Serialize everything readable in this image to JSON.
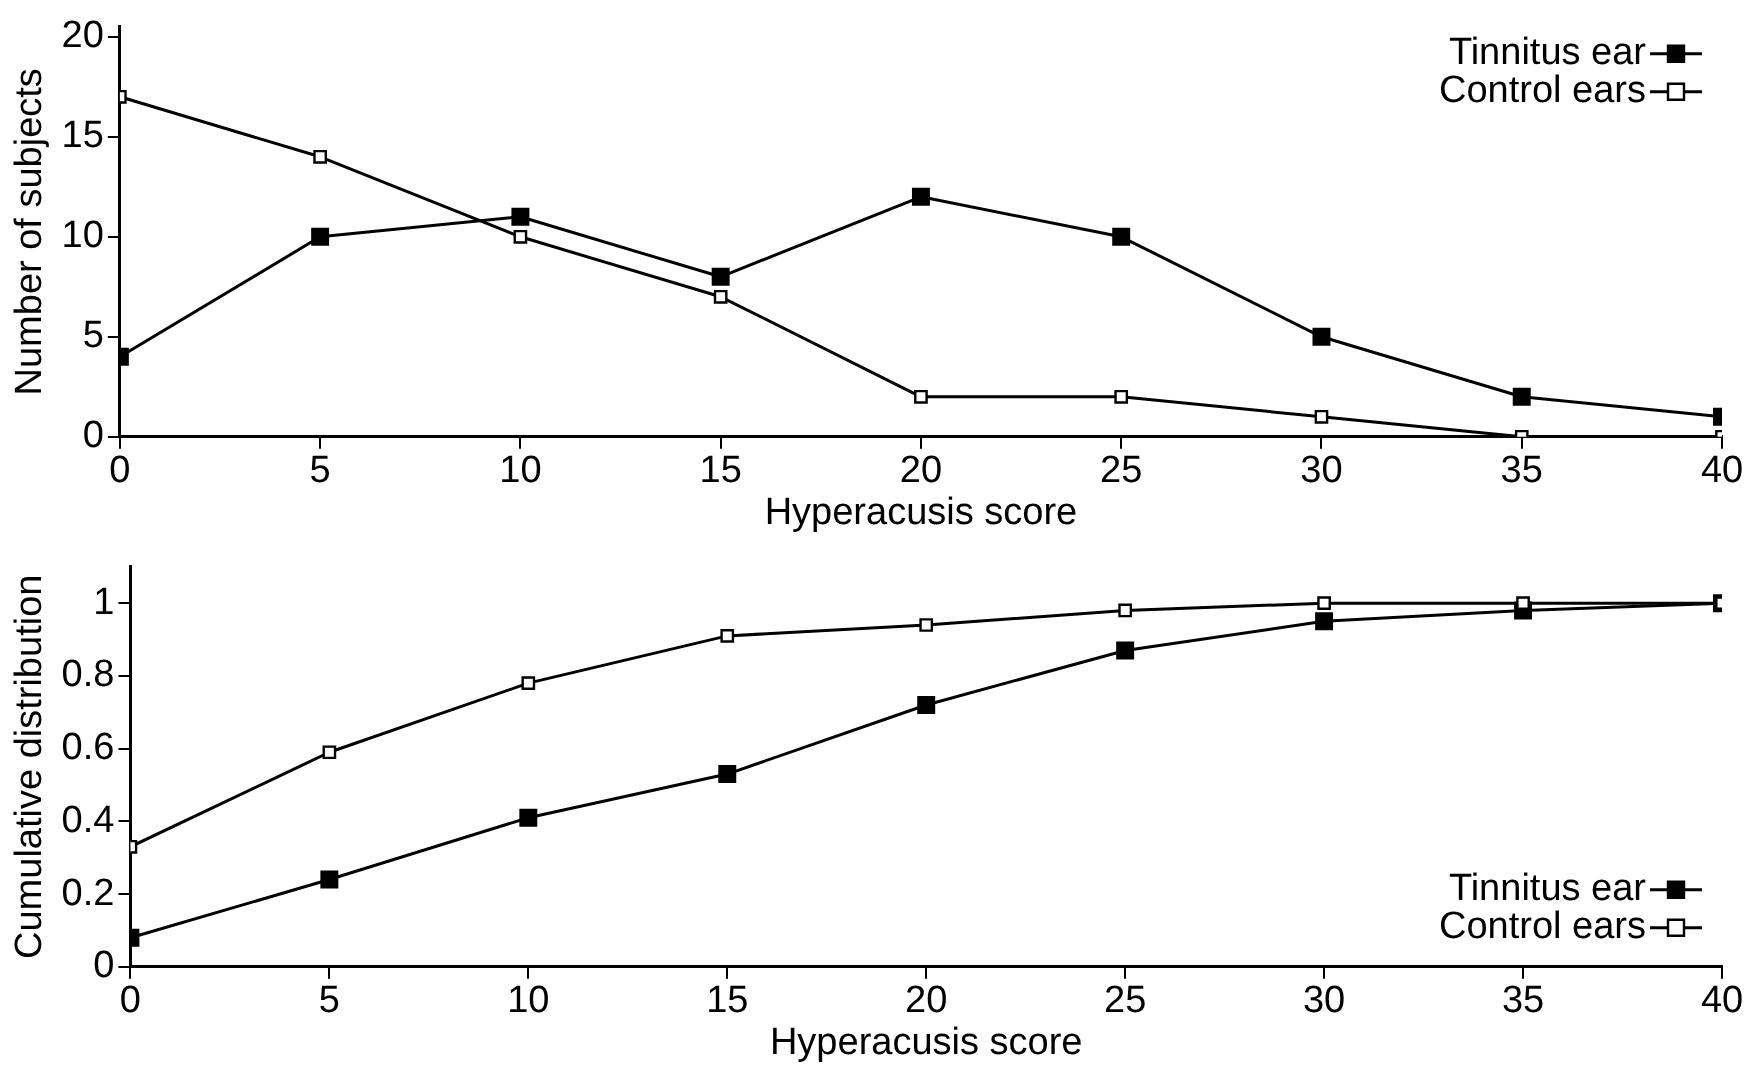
{
  "chart_data": [
    {
      "type": "line",
      "xlabel": "Hyperacusis score",
      "ylabel": "Number of subjects",
      "x": [
        0,
        5,
        10,
        15,
        20,
        25,
        30,
        35,
        40
      ],
      "xlim": [
        0,
        40
      ],
      "xticks": [
        0,
        5,
        10,
        15,
        20,
        25,
        30,
        35,
        40
      ],
      "ylim": [
        0,
        20.5
      ],
      "yticks": [
        0,
        5,
        10,
        15,
        20
      ],
      "grid": false,
      "legend": "top right",
      "marker": "square",
      "line_style": "solid",
      "series": [
        {
          "name": "Tinnitus ear",
          "color": "#000000",
          "values": [
            4,
            10,
            11,
            8,
            12,
            10,
            5,
            2,
            1
          ]
        },
        {
          "name": "Control ears",
          "color": "#000000",
          "values": [
            17,
            14,
            10,
            7,
            2,
            2,
            1,
            0,
            0
          ]
        }
      ]
    },
    {
      "type": "line",
      "xlabel": "Hyperacusis score",
      "ylabel": "Cumulative distribution",
      "x": [
        0,
        5,
        10,
        15,
        20,
        25,
        30,
        35,
        40
      ],
      "xlim": [
        0,
        40
      ],
      "xticks": [
        0,
        5,
        10,
        15,
        20,
        25,
        30,
        35,
        40
      ],
      "ylim": [
        0,
        1.1
      ],
      "yticks": [
        0,
        0.2,
        0.4,
        0.6,
        0.8,
        1
      ],
      "grid": false,
      "legend": "bottom right",
      "marker": "square",
      "line_style": "solid",
      "series": [
        {
          "name": "Tinnitus ear",
          "color": "#000000",
          "values": [
            0.08,
            0.24,
            0.41,
            0.53,
            0.72,
            0.87,
            0.95,
            0.98,
            1
          ]
        },
        {
          "name": "Control ears",
          "color": "#000000",
          "values": [
            0.33,
            0.59,
            0.78,
            0.91,
            0.94,
            0.98,
            1,
            1,
            1
          ]
        }
      ]
    }
  ]
}
